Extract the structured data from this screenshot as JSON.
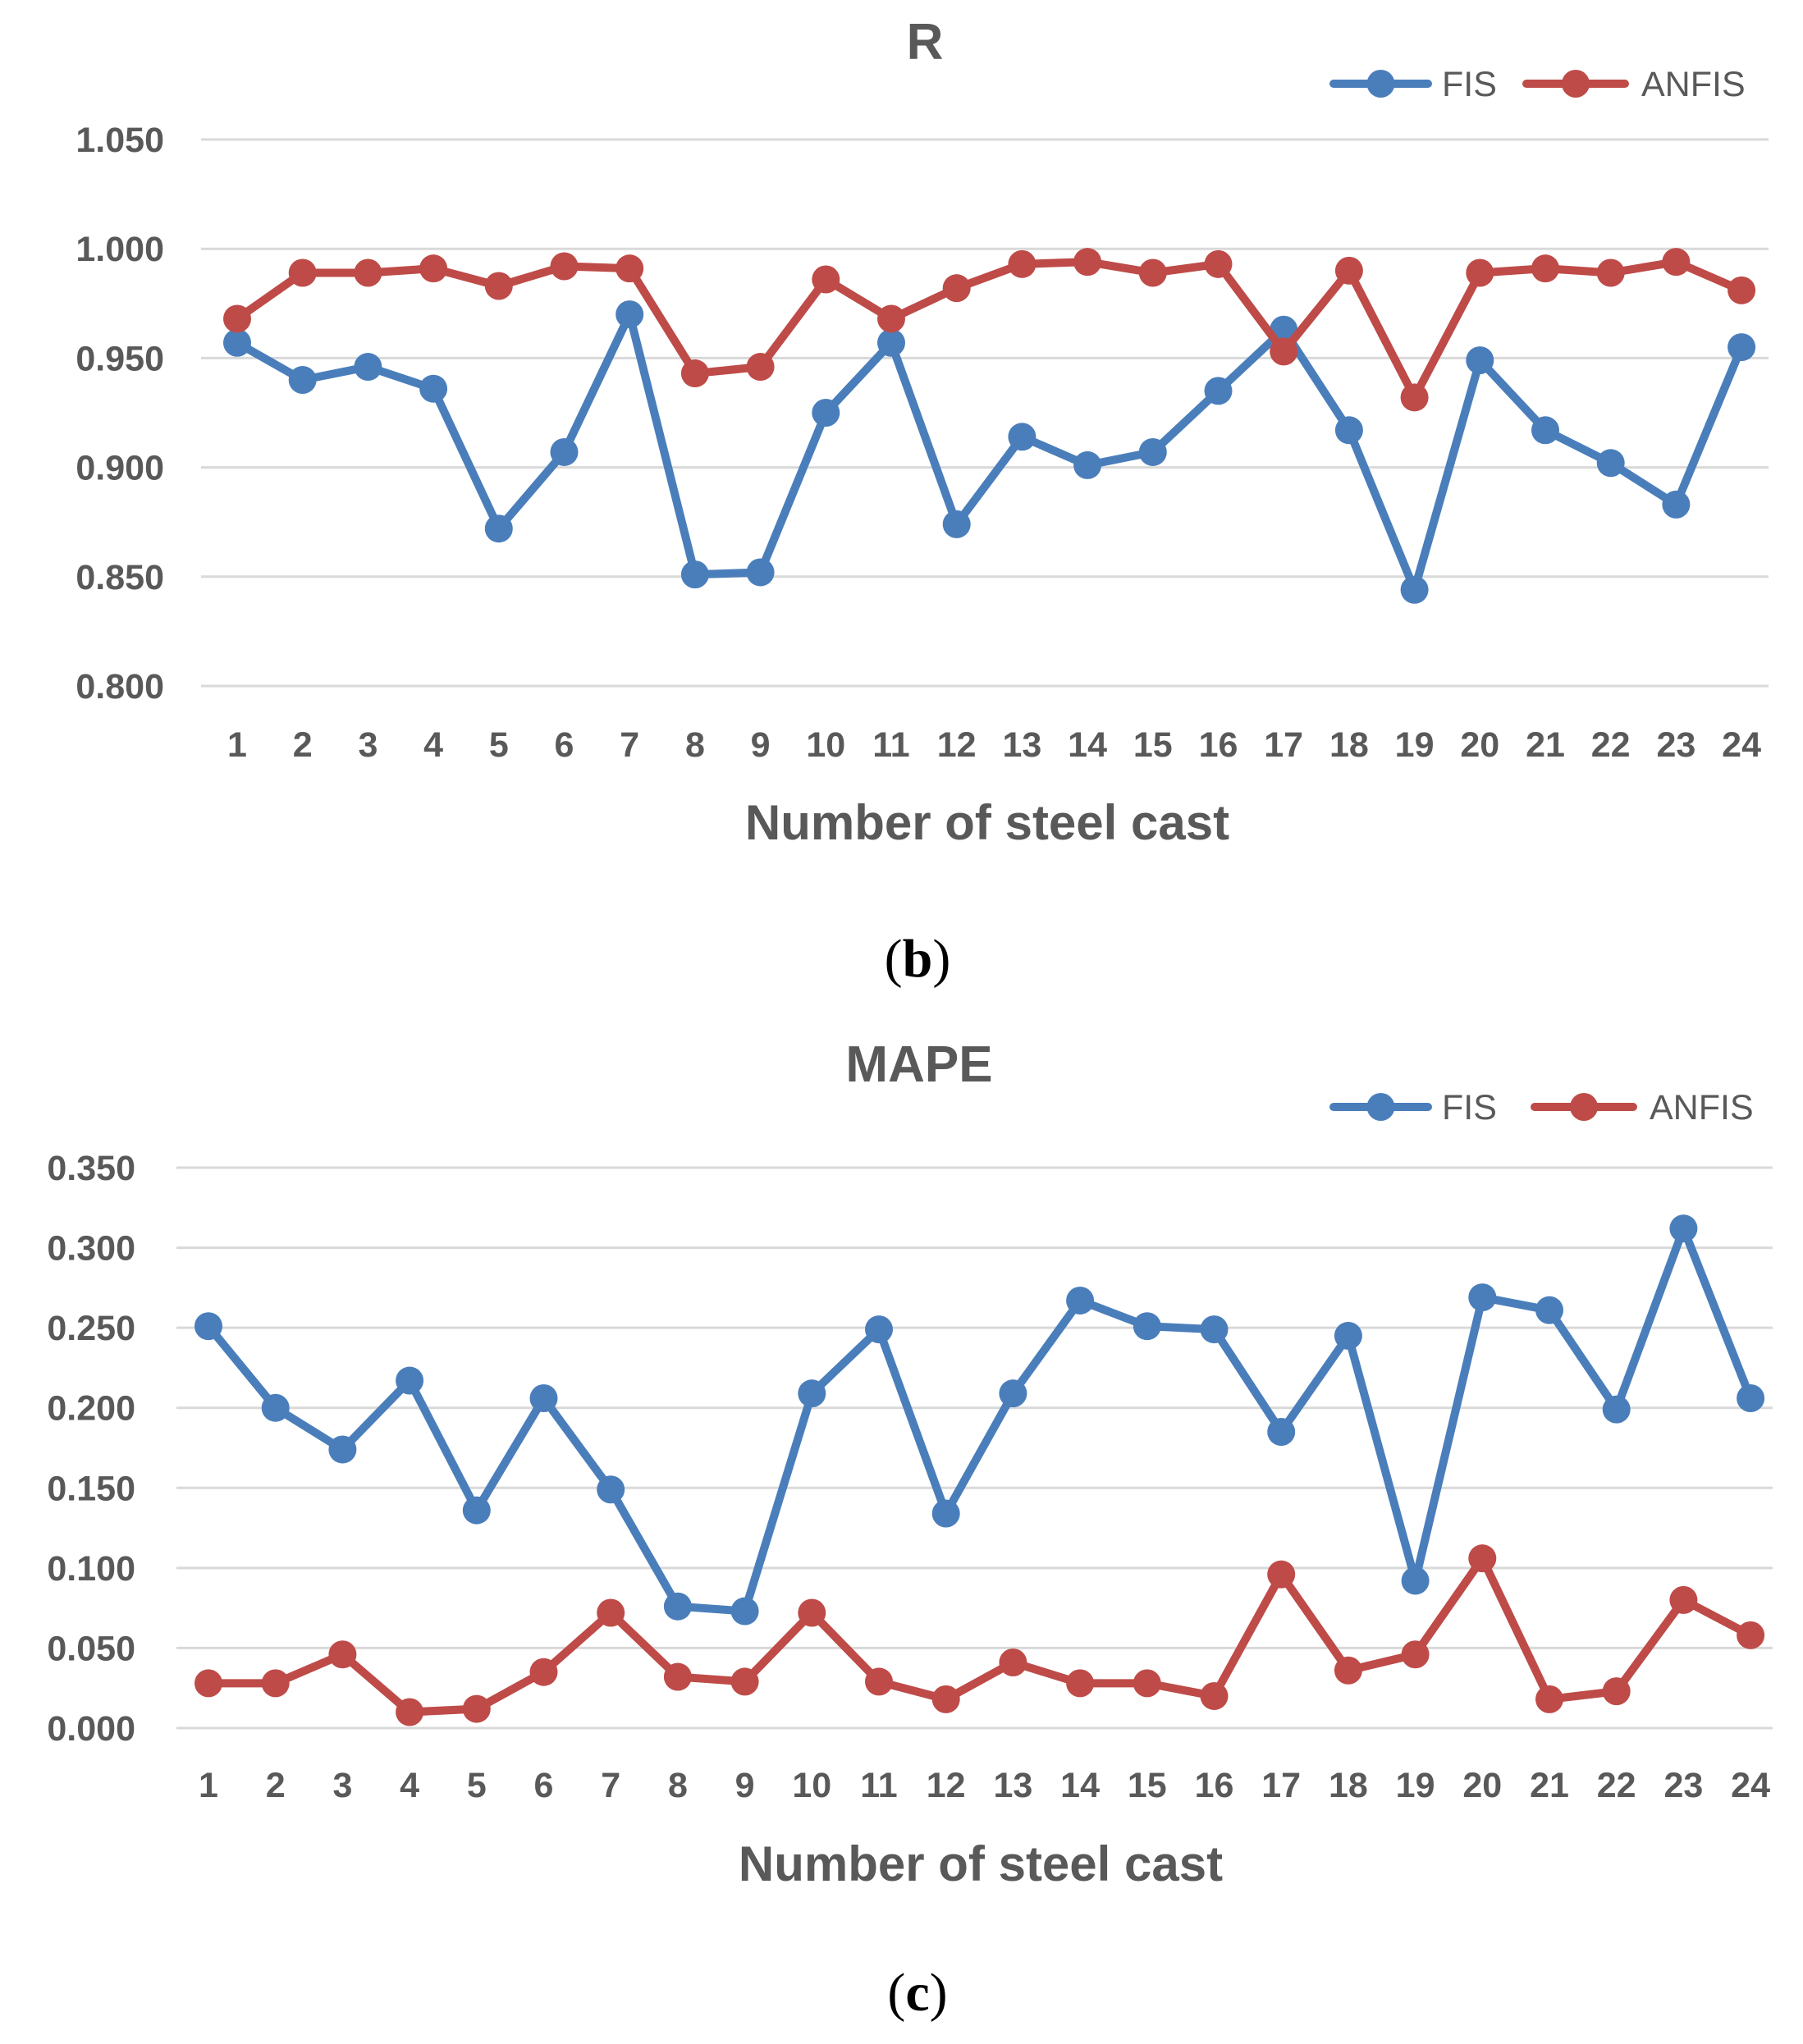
{
  "colors": {
    "fis": "#4a7ebb",
    "anfis": "#be4b48"
  },
  "chart_data": [
    {
      "type": "line",
      "panel": "(b)",
      "panel_letter": "b",
      "title": "R",
      "xlabel": "Number of steel cast",
      "ylabel": "",
      "categories": [
        "1",
        "2",
        "3",
        "4",
        "5",
        "6",
        "7",
        "8",
        "9",
        "10",
        "11",
        "12",
        "13",
        "14",
        "15",
        "16",
        "17",
        "18",
        "19",
        "20",
        "21",
        "22",
        "23",
        "24"
      ],
      "yticks": [
        "0.800",
        "0.850",
        "0.900",
        "0.950",
        "1.000",
        "1.050"
      ],
      "ylim": [
        0.8,
        1.05
      ],
      "grid": true,
      "legend": "top-right",
      "series": [
        {
          "name": "FIS",
          "color": "#4a7ebb",
          "values": [
            0.957,
            0.94,
            0.946,
            0.936,
            0.872,
            0.907,
            0.97,
            0.851,
            0.852,
            0.925,
            0.957,
            0.874,
            0.914,
            0.901,
            0.907,
            0.935,
            0.963,
            0.917,
            0.844,
            0.949,
            0.917,
            0.902,
            0.883,
            0.955
          ]
        },
        {
          "name": "ANFIS",
          "color": "#be4b48",
          "values": [
            0.968,
            0.989,
            0.989,
            0.991,
            0.983,
            0.992,
            0.991,
            0.943,
            0.946,
            0.986,
            0.968,
            0.982,
            0.993,
            0.994,
            0.989,
            0.993,
            0.953,
            0.99,
            0.932,
            0.989,
            0.991,
            0.989,
            0.994,
            0.981
          ]
        }
      ]
    },
    {
      "type": "line",
      "panel": "(c)",
      "panel_letter": "c",
      "title": "MAPE",
      "xlabel": "Number of steel cast",
      "ylabel": "",
      "categories": [
        "1",
        "2",
        "3",
        "4",
        "5",
        "6",
        "7",
        "8",
        "9",
        "10",
        "11",
        "12",
        "13",
        "14",
        "15",
        "16",
        "17",
        "18",
        "19",
        "20",
        "21",
        "22",
        "23",
        "24"
      ],
      "yticks": [
        "0.000",
        "0.050",
        "0.100",
        "0.150",
        "0.200",
        "0.250",
        "0.300",
        "0.350"
      ],
      "ylim": [
        0.0,
        0.35
      ],
      "grid": true,
      "legend": "top-right",
      "series": [
        {
          "name": "FIS",
          "color": "#4a7ebb",
          "values": [
            0.251,
            0.2,
            0.174,
            0.217,
            0.136,
            0.206,
            0.149,
            0.076,
            0.073,
            0.209,
            0.249,
            0.134,
            0.209,
            0.267,
            0.251,
            0.249,
            0.185,
            0.245,
            0.092,
            0.269,
            0.261,
            0.199,
            0.312,
            0.206
          ]
        },
        {
          "name": "ANFIS",
          "color": "#be4b48",
          "values": [
            0.028,
            0.028,
            0.046,
            0.01,
            0.012,
            0.035,
            0.072,
            0.032,
            0.029,
            0.072,
            0.029,
            0.018,
            0.041,
            0.028,
            0.028,
            0.02,
            0.096,
            0.036,
            0.046,
            0.106,
            0.018,
            0.023,
            0.08,
            0.058
          ]
        }
      ]
    }
  ]
}
